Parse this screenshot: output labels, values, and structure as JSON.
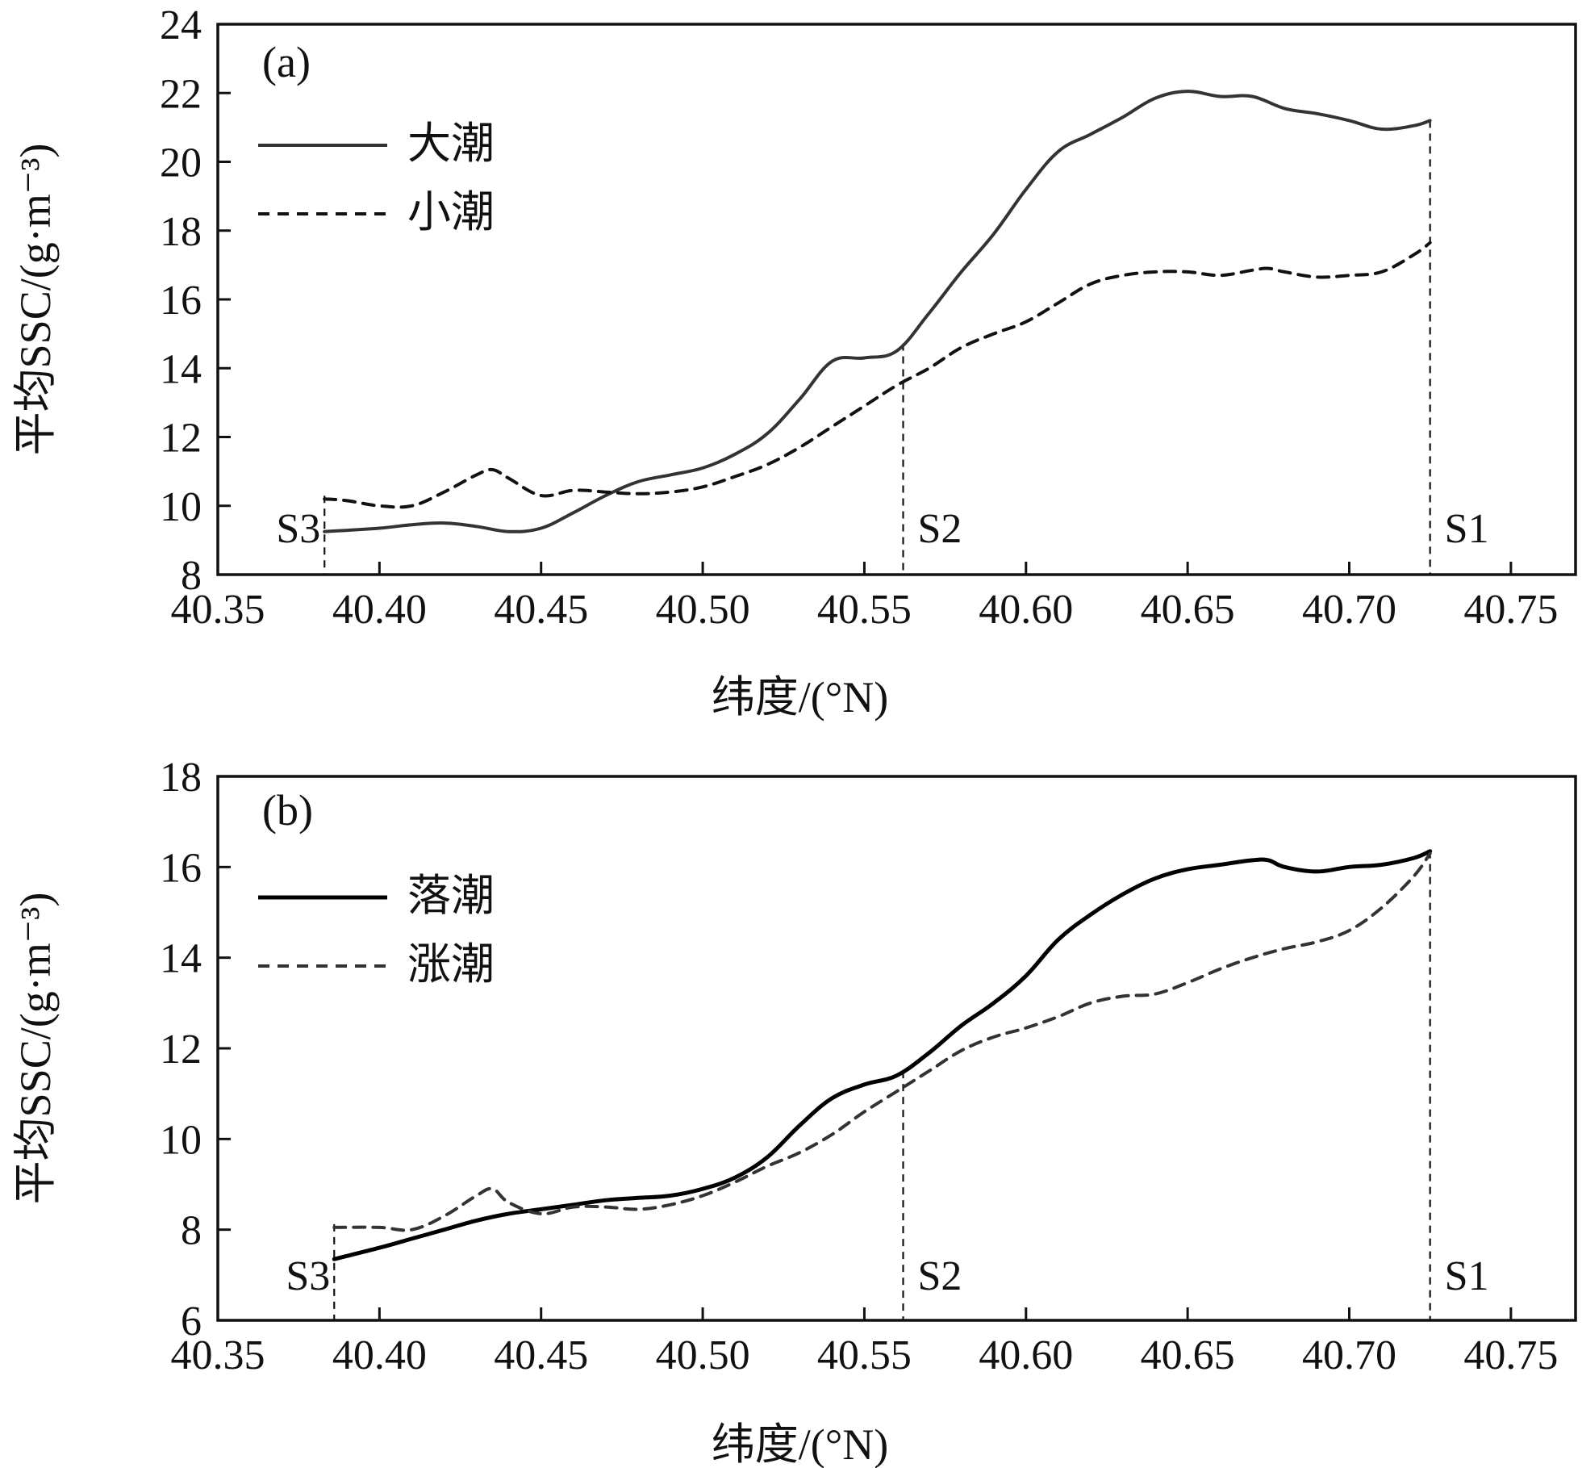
{
  "chart_data": [
    {
      "type": "line",
      "panel_label": "(a)",
      "xlabel": "纬度/(°N)",
      "ylabel": "平均SSC/(g·m⁻³)",
      "xlim": [
        40.35,
        40.77
      ],
      "ylim": [
        8,
        24
      ],
      "xticks": [
        "40.35",
        "40.40",
        "40.45",
        "40.50",
        "40.55",
        "40.60",
        "40.65",
        "40.70",
        "40.75"
      ],
      "yticks": [
        "8",
        "10",
        "12",
        "14",
        "16",
        "18",
        "20",
        "22",
        "24"
      ],
      "grid": false,
      "legend": "top-left",
      "stations": [
        {
          "name": "S3",
          "lat": 40.383
        },
        {
          "name": "S2",
          "lat": 40.562
        },
        {
          "name": "S1",
          "lat": 40.725
        }
      ],
      "series": [
        {
          "name": "大潮",
          "style": "solid",
          "color": "#333333",
          "x": [
            40.383,
            40.4,
            40.41,
            40.42,
            40.43,
            40.44,
            40.45,
            40.46,
            40.47,
            40.48,
            40.49,
            40.5,
            40.51,
            40.52,
            40.53,
            40.54,
            40.55,
            40.56,
            40.57,
            40.58,
            40.59,
            40.6,
            40.61,
            40.62,
            40.63,
            40.64,
            40.65,
            40.66,
            40.67,
            40.68,
            40.69,
            40.7,
            40.71,
            40.72,
            40.725
          ],
          "y": [
            9.25,
            9.35,
            9.45,
            9.5,
            9.4,
            9.25,
            9.35,
            9.8,
            10.3,
            10.7,
            10.9,
            11.1,
            11.5,
            12.1,
            13.1,
            14.2,
            14.3,
            14.5,
            15.6,
            16.8,
            17.9,
            19.2,
            20.3,
            20.8,
            21.3,
            21.85,
            22.05,
            21.9,
            21.9,
            21.55,
            21.4,
            21.2,
            20.95,
            21.05,
            21.2
          ]
        },
        {
          "name": "小潮",
          "style": "dashed",
          "color": "#111111",
          "x": [
            40.383,
            40.39,
            40.4,
            40.41,
            40.42,
            40.43,
            40.435,
            40.44,
            40.45,
            40.46,
            40.47,
            40.48,
            40.49,
            40.5,
            40.51,
            40.52,
            40.53,
            40.54,
            40.55,
            40.56,
            40.57,
            40.58,
            40.59,
            40.6,
            40.61,
            40.62,
            40.63,
            40.64,
            40.65,
            40.66,
            40.67,
            40.675,
            40.68,
            40.69,
            40.7,
            40.71,
            40.72,
            40.725
          ],
          "y": [
            10.2,
            10.15,
            10.0,
            10.0,
            10.4,
            10.9,
            11.05,
            10.8,
            10.3,
            10.45,
            10.4,
            10.35,
            10.4,
            10.55,
            10.85,
            11.2,
            11.7,
            12.3,
            12.9,
            13.5,
            14.0,
            14.6,
            15.0,
            15.35,
            15.9,
            16.45,
            16.7,
            16.8,
            16.8,
            16.7,
            16.85,
            16.9,
            16.8,
            16.65,
            16.7,
            16.8,
            17.3,
            17.65
          ]
        }
      ]
    },
    {
      "type": "line",
      "panel_label": "(b)",
      "xlabel": "纬度/(°N)",
      "ylabel": "平均SSC/(g·m⁻³)",
      "xlim": [
        40.35,
        40.77
      ],
      "ylim": [
        6,
        18
      ],
      "xticks": [
        "40.35",
        "40.40",
        "40.45",
        "40.50",
        "40.55",
        "40.60",
        "40.65",
        "40.70",
        "40.75"
      ],
      "yticks": [
        "6",
        "8",
        "10",
        "12",
        "14",
        "16",
        "18"
      ],
      "grid": false,
      "legend": "top-left",
      "stations": [
        {
          "name": "S3",
          "lat": 40.386
        },
        {
          "name": "S2",
          "lat": 40.562
        },
        {
          "name": "S1",
          "lat": 40.725
        }
      ],
      "series": [
        {
          "name": "落潮",
          "style": "solid",
          "color": "#000000",
          "x": [
            40.386,
            40.4,
            40.41,
            40.42,
            40.43,
            40.44,
            40.45,
            40.46,
            40.47,
            40.48,
            40.49,
            40.5,
            40.51,
            40.52,
            40.53,
            40.54,
            40.55,
            40.56,
            40.57,
            40.58,
            40.59,
            40.6,
            40.61,
            40.62,
            40.63,
            40.64,
            40.65,
            40.66,
            40.67,
            40.675,
            40.68,
            40.69,
            40.7,
            40.71,
            40.72,
            40.725
          ],
          "y": [
            7.35,
            7.6,
            7.8,
            8.0,
            8.2,
            8.35,
            8.45,
            8.55,
            8.65,
            8.7,
            8.75,
            8.9,
            9.15,
            9.6,
            10.3,
            10.9,
            11.2,
            11.4,
            11.9,
            12.5,
            13.0,
            13.6,
            14.4,
            14.95,
            15.4,
            15.75,
            15.95,
            16.05,
            16.15,
            16.15,
            16.0,
            15.9,
            16.0,
            16.05,
            16.2,
            16.35
          ]
        },
        {
          "name": "涨潮",
          "style": "dashed",
          "color": "#333333",
          "x": [
            40.386,
            40.4,
            40.41,
            40.42,
            40.43,
            40.435,
            40.44,
            40.45,
            40.46,
            40.47,
            40.48,
            40.49,
            40.5,
            40.51,
            40.52,
            40.53,
            40.54,
            40.55,
            40.56,
            40.57,
            40.58,
            40.59,
            40.6,
            40.61,
            40.62,
            40.63,
            40.64,
            40.65,
            40.66,
            40.67,
            40.68,
            40.69,
            40.7,
            40.71,
            40.72,
            40.725
          ],
          "y": [
            8.05,
            8.05,
            8.0,
            8.3,
            8.75,
            8.9,
            8.6,
            8.35,
            8.5,
            8.5,
            8.45,
            8.55,
            8.75,
            9.05,
            9.4,
            9.7,
            10.1,
            10.6,
            11.05,
            11.5,
            11.95,
            12.25,
            12.45,
            12.7,
            13.0,
            13.15,
            13.2,
            13.45,
            13.75,
            14.0,
            14.2,
            14.35,
            14.6,
            15.1,
            15.8,
            16.3
          ]
        }
      ]
    }
  ]
}
